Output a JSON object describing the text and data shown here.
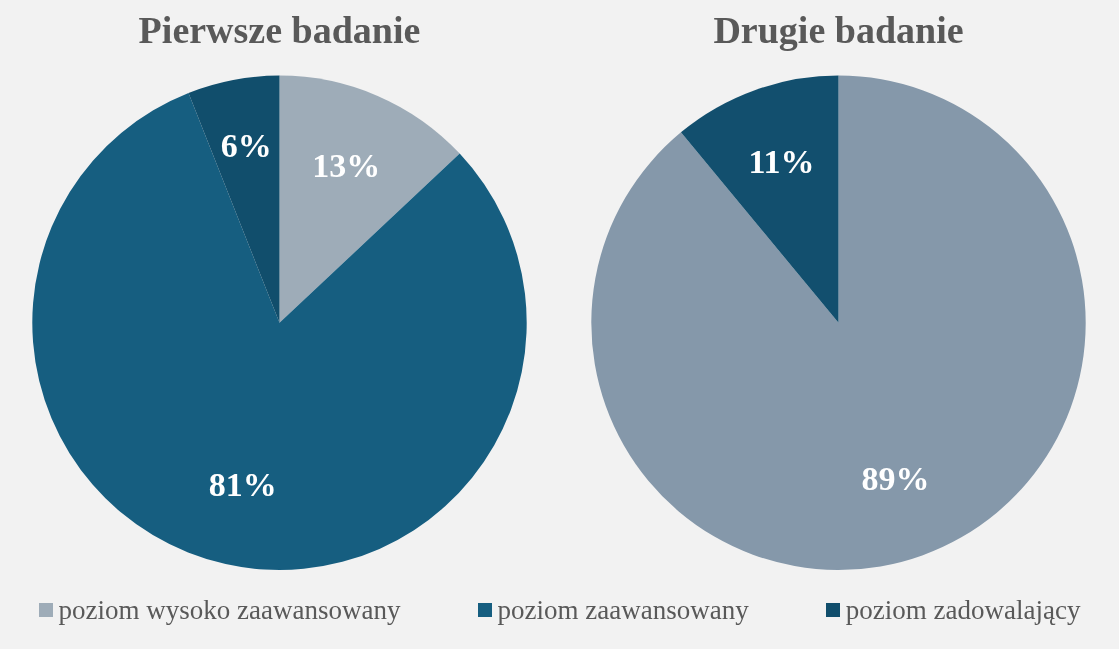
{
  "chart_data": [
    {
      "type": "pie",
      "title": "Pierwsze badanie",
      "categories": [
        "poziom wysoko zaawansowany",
        "poziom zaawansowany",
        "poziom zadowalający"
      ],
      "values": [
        13,
        81,
        6
      ],
      "colors": [
        "#9eacb8",
        "#165e80",
        "#114e6c"
      ],
      "value_labels": [
        "13%",
        "81%",
        "6%"
      ],
      "legend": "bottom"
    },
    {
      "type": "pie",
      "title": "Drugie badanie",
      "categories": [
        null,
        null
      ],
      "values": [
        89,
        11
      ],
      "colors": [
        "#8598aa",
        "#124f6e"
      ],
      "value_labels": [
        "89%",
        "11%"
      ]
    }
  ]
}
